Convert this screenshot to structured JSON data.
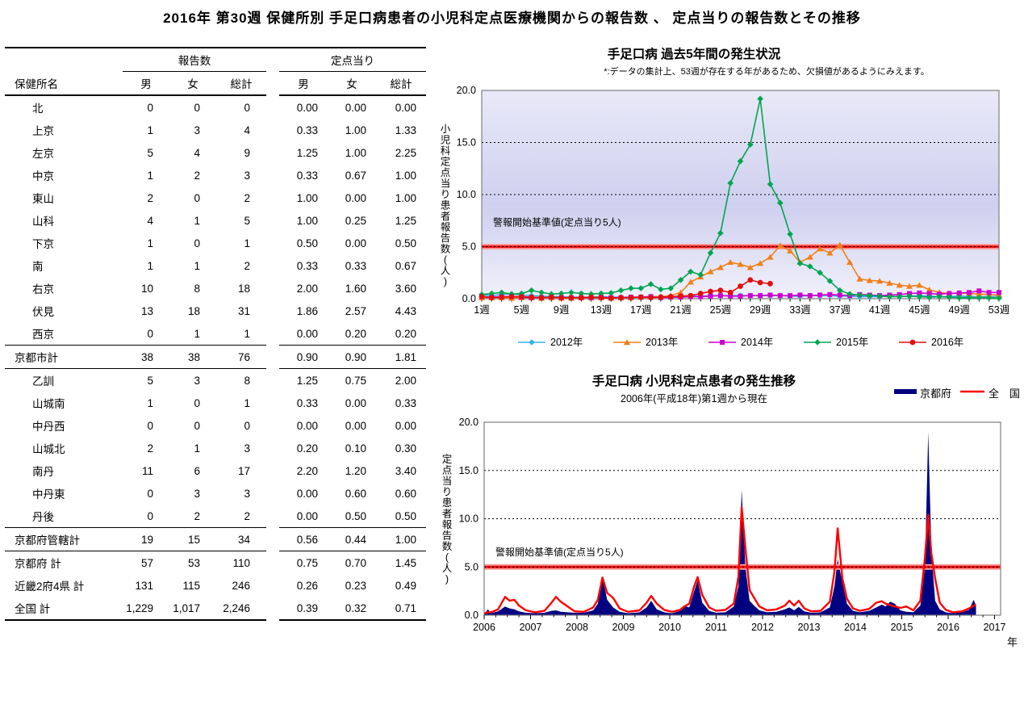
{
  "title": "2016年 第30週 保健所別 手足口病患者の小児科定点医療機関からの報告数 、 定点当りの報告数とその推移",
  "table": {
    "name_header": "保健所名",
    "group_headers": [
      "報告数",
      "定点当り"
    ],
    "col_headers": [
      "男",
      "女",
      "総計",
      "男",
      "女",
      "総計"
    ],
    "rows": [
      {
        "name": "北",
        "kind": "normal",
        "values": [
          "0",
          "0",
          "0",
          "0.00",
          "0.00",
          "0.00"
        ]
      },
      {
        "name": "上京",
        "kind": "normal",
        "values": [
          "1",
          "3",
          "4",
          "0.33",
          "1.00",
          "1.33"
        ]
      },
      {
        "name": "左京",
        "kind": "normal",
        "values": [
          "5",
          "4",
          "9",
          "1.25",
          "1.00",
          "2.25"
        ]
      },
      {
        "name": "中京",
        "kind": "normal",
        "values": [
          "1",
          "2",
          "3",
          "0.33",
          "0.67",
          "1.00"
        ]
      },
      {
        "name": "東山",
        "kind": "normal",
        "values": [
          "2",
          "0",
          "2",
          "1.00",
          "0.00",
          "1.00"
        ]
      },
      {
        "name": "山科",
        "kind": "normal",
        "values": [
          "4",
          "1",
          "5",
          "1.00",
          "0.25",
          "1.25"
        ]
      },
      {
        "name": "下京",
        "kind": "normal",
        "values": [
          "1",
          "0",
          "1",
          "0.50",
          "0.00",
          "0.50"
        ]
      },
      {
        "name": "南",
        "kind": "normal",
        "values": [
          "1",
          "1",
          "2",
          "0.33",
          "0.33",
          "0.67"
        ]
      },
      {
        "name": "右京",
        "kind": "normal",
        "values": [
          "10",
          "8",
          "18",
          "2.00",
          "1.60",
          "3.60"
        ]
      },
      {
        "name": "伏見",
        "kind": "normal",
        "values": [
          "13",
          "18",
          "31",
          "1.86",
          "2.57",
          "4.43"
        ]
      },
      {
        "name": "西京",
        "kind": "normal",
        "values": [
          "0",
          "1",
          "1",
          "0.00",
          "0.20",
          "0.20"
        ]
      },
      {
        "name": "京都市計",
        "kind": "total",
        "values": [
          "38",
          "38",
          "76",
          "0.90",
          "0.90",
          "1.81"
        ]
      },
      {
        "name": "乙訓",
        "kind": "normal",
        "values": [
          "5",
          "3",
          "8",
          "1.25",
          "0.75",
          "2.00"
        ]
      },
      {
        "name": "山城南",
        "kind": "normal",
        "values": [
          "1",
          "0",
          "1",
          "0.33",
          "0.00",
          "0.33"
        ]
      },
      {
        "name": "中丹西",
        "kind": "normal",
        "values": [
          "0",
          "0",
          "0",
          "0.00",
          "0.00",
          "0.00"
        ]
      },
      {
        "name": "山城北",
        "kind": "normal",
        "values": [
          "2",
          "1",
          "3",
          "0.20",
          "0.10",
          "0.30"
        ]
      },
      {
        "name": "南丹",
        "kind": "normal",
        "values": [
          "11",
          "6",
          "17",
          "2.20",
          "1.20",
          "3.40"
        ]
      },
      {
        "name": "中丹東",
        "kind": "normal",
        "values": [
          "0",
          "3",
          "3",
          "0.00",
          "0.60",
          "0.60"
        ]
      },
      {
        "name": "丹後",
        "kind": "normal",
        "values": [
          "0",
          "2",
          "2",
          "0.00",
          "0.50",
          "0.50"
        ]
      },
      {
        "name": "京都府管轄計",
        "kind": "total",
        "values": [
          "19",
          "15",
          "34",
          "0.56",
          "0.44",
          "1.00"
        ]
      },
      {
        "name": "京都府  計",
        "kind": "grand",
        "values": [
          "57",
          "53",
          "110",
          "0.75",
          "0.70",
          "1.45"
        ]
      },
      {
        "name": "近畿2府4県  計",
        "kind": "grand",
        "values": [
          "131",
          "115",
          "246",
          "0.26",
          "0.23",
          "0.49"
        ]
      },
      {
        "name": "全国  計",
        "kind": "grand-last",
        "values": [
          "1,229",
          "1,017",
          "2,246",
          "0.39",
          "0.32",
          "0.71"
        ]
      }
    ]
  },
  "chart_data": [
    {
      "type": "line",
      "title": "手足口病 過去5年間の発生状況",
      "note": "*:データの集計上、53週が存在する年があるため、欠損値があるようにみえます。",
      "ylabel": "小児科定点当り患者報告数(人)",
      "ylim": [
        0,
        20
      ],
      "y_ticks": [
        0,
        5,
        10,
        15,
        20
      ],
      "weeks": 53,
      "x_label_weeks": [
        1,
        5,
        9,
        13,
        17,
        21,
        25,
        29,
        33,
        37,
        41,
        45,
        49,
        53
      ],
      "x_label_suffix": "週",
      "alert": {
        "value": 5,
        "label": "警報開始基準値(定点当り5人)",
        "color": "#ee1111",
        "glow": "#ff9999"
      },
      "plot_bg_gradient": [
        "#e9e9f8",
        "#cfcfef",
        "#f1f1fb"
      ],
      "grid": "dashed",
      "legend_position": "bottom",
      "series": [
        {
          "name": "2012年",
          "color": "#33b3e6",
          "marker": "diamond",
          "values": [
            0.35,
            0.3,
            0.4,
            0.45,
            0.35,
            0.3,
            0.25,
            0.2,
            0.2,
            0.15,
            0.15,
            0.15,
            0.2,
            0.15,
            0.15,
            0.15,
            0.15,
            0.2,
            0.2,
            0.2,
            0.2,
            0.25,
            0.25,
            0.3,
            0.3,
            0.3,
            0.3,
            0.3,
            0.3,
            0.3,
            0.3,
            0.25,
            0.25,
            0.3,
            0.3,
            0.3,
            0.25,
            0.25,
            0.2,
            0.2,
            0.2,
            0.25,
            0.2,
            0.25,
            0.3,
            0.25,
            0.2,
            0.2,
            0.25,
            0.2,
            0.2,
            0.2,
            0.2
          ]
        },
        {
          "name": "2013年",
          "color": "#f08019",
          "marker": "triangle",
          "values": [
            0.1,
            0.1,
            0.1,
            0.05,
            0.1,
            0.1,
            0.05,
            0.1,
            0.05,
            0.05,
            0.1,
            0.1,
            0.1,
            0.05,
            0.1,
            0.1,
            0.15,
            0.2,
            0.2,
            0.3,
            0.6,
            1.6,
            2.1,
            2.6,
            3.0,
            3.5,
            3.3,
            3.0,
            3.4,
            4.0,
            5.1,
            4.6,
            3.5,
            4.0,
            4.8,
            4.4,
            5.15,
            3.5,
            1.9,
            1.75,
            1.7,
            1.5,
            1.3,
            1.2,
            1.3,
            0.85,
            0.6,
            0.5,
            0.55,
            0.5,
            0.45,
            0.4,
            0.35
          ]
        },
        {
          "name": "2014年",
          "color": "#cc00cc",
          "marker": "square",
          "values": [
            0.2,
            0.15,
            0.2,
            0.2,
            0.15,
            0.1,
            0.1,
            0.15,
            0.1,
            0.1,
            0.1,
            0.1,
            0.15,
            0.1,
            0.1,
            0.15,
            0.15,
            0.2,
            0.1,
            0.15,
            0.15,
            0.2,
            0.2,
            0.25,
            0.3,
            0.25,
            0.25,
            0.3,
            0.3,
            0.35,
            0.3,
            0.3,
            0.35,
            0.3,
            0.35,
            0.4,
            0.35,
            0.3,
            0.4,
            0.35,
            0.3,
            0.35,
            0.4,
            0.5,
            0.55,
            0.5,
            0.45,
            0.5,
            0.55,
            0.6,
            0.75,
            0.6,
            0.6
          ]
        },
        {
          "name": "2015年",
          "color": "#00a551",
          "marker": "diamond",
          "values": [
            0.4,
            0.5,
            0.6,
            0.45,
            0.5,
            0.8,
            0.6,
            0.45,
            0.5,
            0.6,
            0.5,
            0.45,
            0.5,
            0.55,
            0.8,
            1.0,
            1.0,
            1.4,
            0.9,
            1.0,
            1.8,
            2.6,
            2.3,
            4.4,
            6.3,
            11.1,
            13.2,
            14.8,
            19.2,
            11.0,
            9.2,
            6.2,
            3.4,
            3.1,
            2.5,
            1.7,
            0.8,
            0.45,
            0.35,
            0.3,
            0.25,
            0.2,
            0.2,
            0.25,
            0.2,
            0.15,
            0.2,
            0.15,
            0.1,
            0.1,
            0.1,
            0.1,
            0.05
          ]
        },
        {
          "name": "2016年",
          "color": "#e01010",
          "marker": "circle",
          "values": [
            0.2,
            0.1,
            0.15,
            0.2,
            0.2,
            0.15,
            0.1,
            0.15,
            0.1,
            0.1,
            0.1,
            0.15,
            0.1,
            0.05,
            0.1,
            0.1,
            0.15,
            0.1,
            0.15,
            0.2,
            0.25,
            0.3,
            0.5,
            0.7,
            0.8,
            0.6,
            1.2,
            1.8,
            1.55,
            1.45
          ]
        }
      ]
    },
    {
      "type": "area-line",
      "title": "手足口病 小児科定点患者の発生推移",
      "subtitle": "2006年(平成18年)第1週から現在",
      "ylabel": "定点当り患者報告数(人)",
      "xlabel": "年",
      "ylim": [
        0,
        20
      ],
      "y_ticks": [
        0,
        5,
        10,
        15,
        20
      ],
      "x_ticks": [
        2006,
        2007,
        2008,
        2009,
        2010,
        2011,
        2012,
        2013,
        2014,
        2015,
        2016,
        2017
      ],
      "alert": {
        "value": 5,
        "label": "警報開始基準値(定点当り5人)",
        "color": "#ee1111",
        "glow": "#ff9999"
      },
      "legend": [
        {
          "name": "京都府",
          "color": "#000080",
          "style": "area"
        },
        {
          "name": "全　国",
          "color": "#ff0000",
          "style": "line"
        }
      ],
      "points": [
        [
          2006.0,
          0.1,
          0.2
        ],
        [
          2006.08,
          0.6,
          0.3
        ],
        [
          2006.15,
          0.2,
          0.3
        ],
        [
          2006.3,
          0.4,
          0.6
        ],
        [
          2006.45,
          0.9,
          1.9
        ],
        [
          2006.55,
          0.7,
          1.5
        ],
        [
          2006.65,
          0.6,
          1.6
        ],
        [
          2006.75,
          0.4,
          1.0
        ],
        [
          2006.9,
          0.25,
          0.5
        ],
        [
          2007.1,
          0.2,
          0.3
        ],
        [
          2007.3,
          0.25,
          0.45
        ],
        [
          2007.45,
          0.45,
          1.3
        ],
        [
          2007.55,
          0.5,
          1.9
        ],
        [
          2007.65,
          0.35,
          1.4
        ],
        [
          2007.8,
          0.3,
          0.9
        ],
        [
          2007.95,
          0.25,
          0.4
        ],
        [
          2008.15,
          0.25,
          0.35
        ],
        [
          2008.35,
          0.5,
          0.8
        ],
        [
          2008.45,
          1.2,
          1.6
        ],
        [
          2008.55,
          4.0,
          3.9
        ],
        [
          2008.65,
          1.6,
          2.3
        ],
        [
          2008.78,
          0.8,
          1.8
        ],
        [
          2008.92,
          0.35,
          0.7
        ],
        [
          2009.1,
          0.2,
          0.35
        ],
        [
          2009.35,
          0.3,
          0.5
        ],
        [
          2009.5,
          0.8,
          1.3
        ],
        [
          2009.6,
          1.5,
          2.0
        ],
        [
          2009.72,
          0.6,
          1.2
        ],
        [
          2009.88,
          0.3,
          0.55
        ],
        [
          2010.05,
          0.2,
          0.35
        ],
        [
          2010.22,
          0.45,
          0.55
        ],
        [
          2010.3,
          1.0,
          0.85
        ],
        [
          2010.42,
          0.8,
          1.2
        ],
        [
          2010.52,
          2.4,
          2.9
        ],
        [
          2010.6,
          3.6,
          3.95
        ],
        [
          2010.7,
          1.3,
          2.1
        ],
        [
          2010.85,
          0.45,
          0.8
        ],
        [
          2011.0,
          0.25,
          0.45
        ],
        [
          2011.2,
          0.3,
          0.55
        ],
        [
          2011.38,
          0.9,
          1.2
        ],
        [
          2011.48,
          3.0,
          4.0
        ],
        [
          2011.55,
          13.0,
          11.2
        ],
        [
          2011.63,
          5.0,
          7.0
        ],
        [
          2011.72,
          1.5,
          2.6
        ],
        [
          2011.82,
          1.0,
          1.8
        ],
        [
          2011.93,
          0.5,
          0.9
        ],
        [
          2012.1,
          0.3,
          0.5
        ],
        [
          2012.3,
          0.35,
          0.6
        ],
        [
          2012.48,
          0.6,
          1.0
        ],
        [
          2012.58,
          0.8,
          1.5
        ],
        [
          2012.68,
          0.5,
          1.0
        ],
        [
          2012.78,
          0.85,
          1.5
        ],
        [
          2012.9,
          0.4,
          0.7
        ],
        [
          2013.05,
          0.25,
          0.4
        ],
        [
          2013.25,
          0.3,
          0.45
        ],
        [
          2013.45,
          0.8,
          1.4
        ],
        [
          2013.55,
          3.0,
          4.5
        ],
        [
          2013.62,
          5.8,
          9.0
        ],
        [
          2013.72,
          3.4,
          3.8
        ],
        [
          2013.82,
          1.2,
          1.7
        ],
        [
          2013.95,
          0.45,
          0.7
        ],
        [
          2014.1,
          0.3,
          0.45
        ],
        [
          2014.3,
          0.45,
          0.65
        ],
        [
          2014.45,
          0.8,
          1.3
        ],
        [
          2014.57,
          1.1,
          1.45
        ],
        [
          2014.65,
          0.9,
          1.2
        ],
        [
          2014.75,
          1.4,
          1.05
        ],
        [
          2014.85,
          1.2,
          0.9
        ],
        [
          2014.97,
          0.5,
          0.75
        ],
        [
          2015.1,
          0.35,
          0.9
        ],
        [
          2015.25,
          0.3,
          0.5
        ],
        [
          2015.4,
          1.0,
          1.5
        ],
        [
          2015.5,
          5.0,
          6.0
        ],
        [
          2015.57,
          19.0,
          10.4
        ],
        [
          2015.64,
          6.5,
          6.3
        ],
        [
          2015.72,
          1.5,
          3.8
        ],
        [
          2015.82,
          0.6,
          1.3
        ],
        [
          2015.95,
          0.3,
          0.55
        ],
        [
          2016.1,
          0.2,
          0.3
        ],
        [
          2016.3,
          0.3,
          0.4
        ],
        [
          2016.45,
          0.55,
          0.7
        ],
        [
          2016.55,
          1.6,
          1.0
        ],
        [
          2016.6,
          1.0,
          1.1
        ]
      ]
    }
  ]
}
